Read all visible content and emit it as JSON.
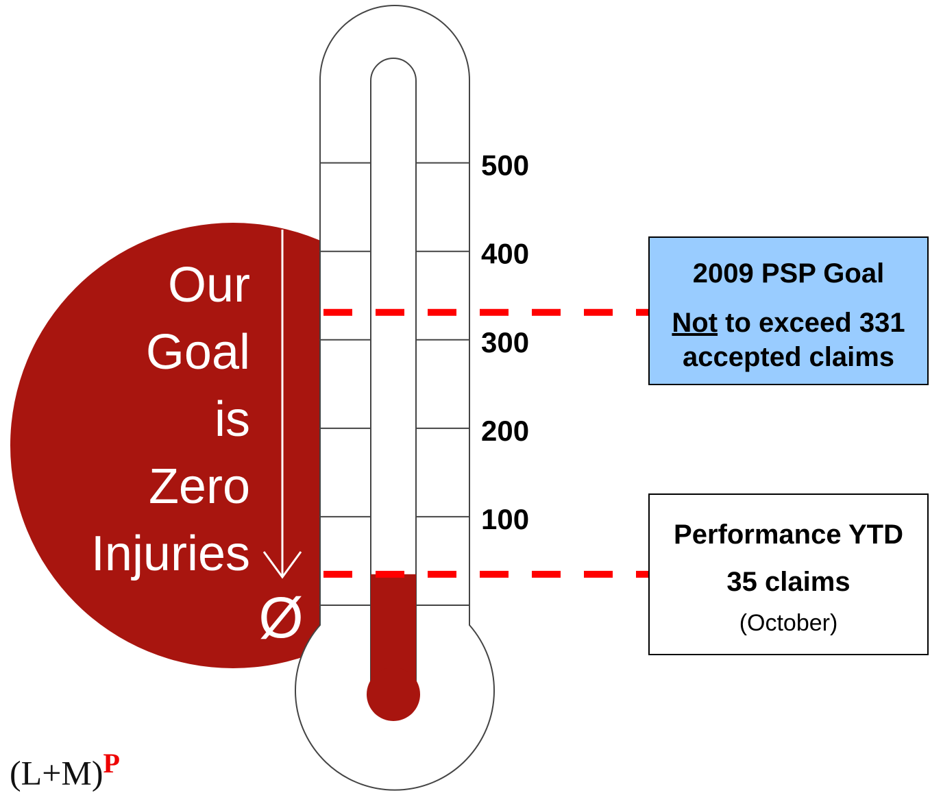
{
  "chart_data": {
    "type": "thermometer",
    "ylim": [
      0,
      595
    ],
    "yticks": [
      100,
      200,
      300,
      400,
      500
    ],
    "fill_color": "#a8150f",
    "marker_color": "#ff0000",
    "slogan": [
      "Our",
      "Goal",
      "is",
      "Zero",
      "Injuries"
    ],
    "zero_symbol": "Ø",
    "goal": {
      "value": 331,
      "title": "2009 PSP Goal",
      "emphasis": "Not",
      "text": " to exceed 331 accepted claims",
      "color": "#99ccff"
    },
    "actual": {
      "value": 35,
      "title": "Performance YTD",
      "text": "35 claims",
      "note": "(October)"
    }
  },
  "logo": {
    "text": "(L+M)",
    "superscript": "P"
  }
}
